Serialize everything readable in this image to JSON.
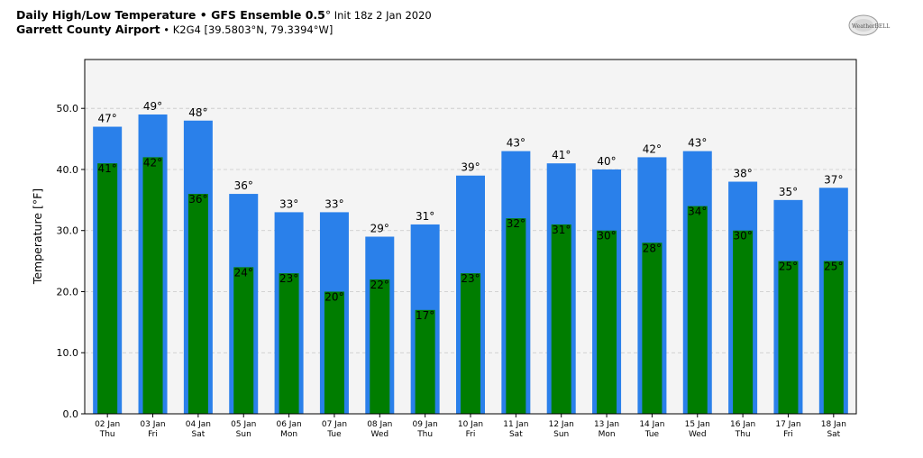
{
  "header": {
    "title_bold": "Daily High/Low Temperature • GFS Ensemble 0.5",
    "title_degree": "°",
    "title_init": " Init 18z 2 Jan 2020",
    "location_bold": "Garrett County Airport",
    "location_detail": " • K2G4 [39.5803°N, 79.3394°W]"
  },
  "logo": {
    "text": "WeatherBELL"
  },
  "colors": {
    "high_bar": "#2a80ea",
    "low_bar": "#007d00",
    "plot_background": "#f4f4f4",
    "grid": "#c8c8c8"
  },
  "chart_data": {
    "type": "bar",
    "ylabel": "Temperature [°F]",
    "ylim": [
      0,
      58
    ],
    "yticks": [
      "0.0",
      "10.0",
      "20.0",
      "30.0",
      "40.0",
      "50.0"
    ],
    "grid": true,
    "categories": [
      "02 Jan",
      "03 Jan",
      "04 Jan",
      "05 Jan",
      "06 Jan",
      "07 Jan",
      "08 Jan",
      "09 Jan",
      "10 Jan",
      "11 Jan",
      "12 Jan",
      "13 Jan",
      "14 Jan",
      "15 Jan",
      "16 Jan",
      "17 Jan",
      "18 Jan"
    ],
    "weekdays": [
      "Thu",
      "Fri",
      "Sat",
      "Sun",
      "Mon",
      "Tue",
      "Wed",
      "Thu",
      "Fri",
      "Sat",
      "Sun",
      "Mon",
      "Tue",
      "Wed",
      "Thu",
      "Fri",
      "Sat"
    ],
    "series": [
      {
        "key": "high",
        "values": [
          47,
          49,
          48,
          36,
          33,
          33,
          29,
          31,
          39,
          43,
          41,
          40,
          42,
          43,
          38,
          35,
          37
        ]
      },
      {
        "key": "low",
        "values": [
          41,
          42,
          36,
          24,
          23,
          20,
          22,
          17,
          23,
          32,
          31,
          30,
          28,
          34,
          30,
          25,
          25
        ]
      }
    ],
    "value_label_suffix": "°"
  }
}
